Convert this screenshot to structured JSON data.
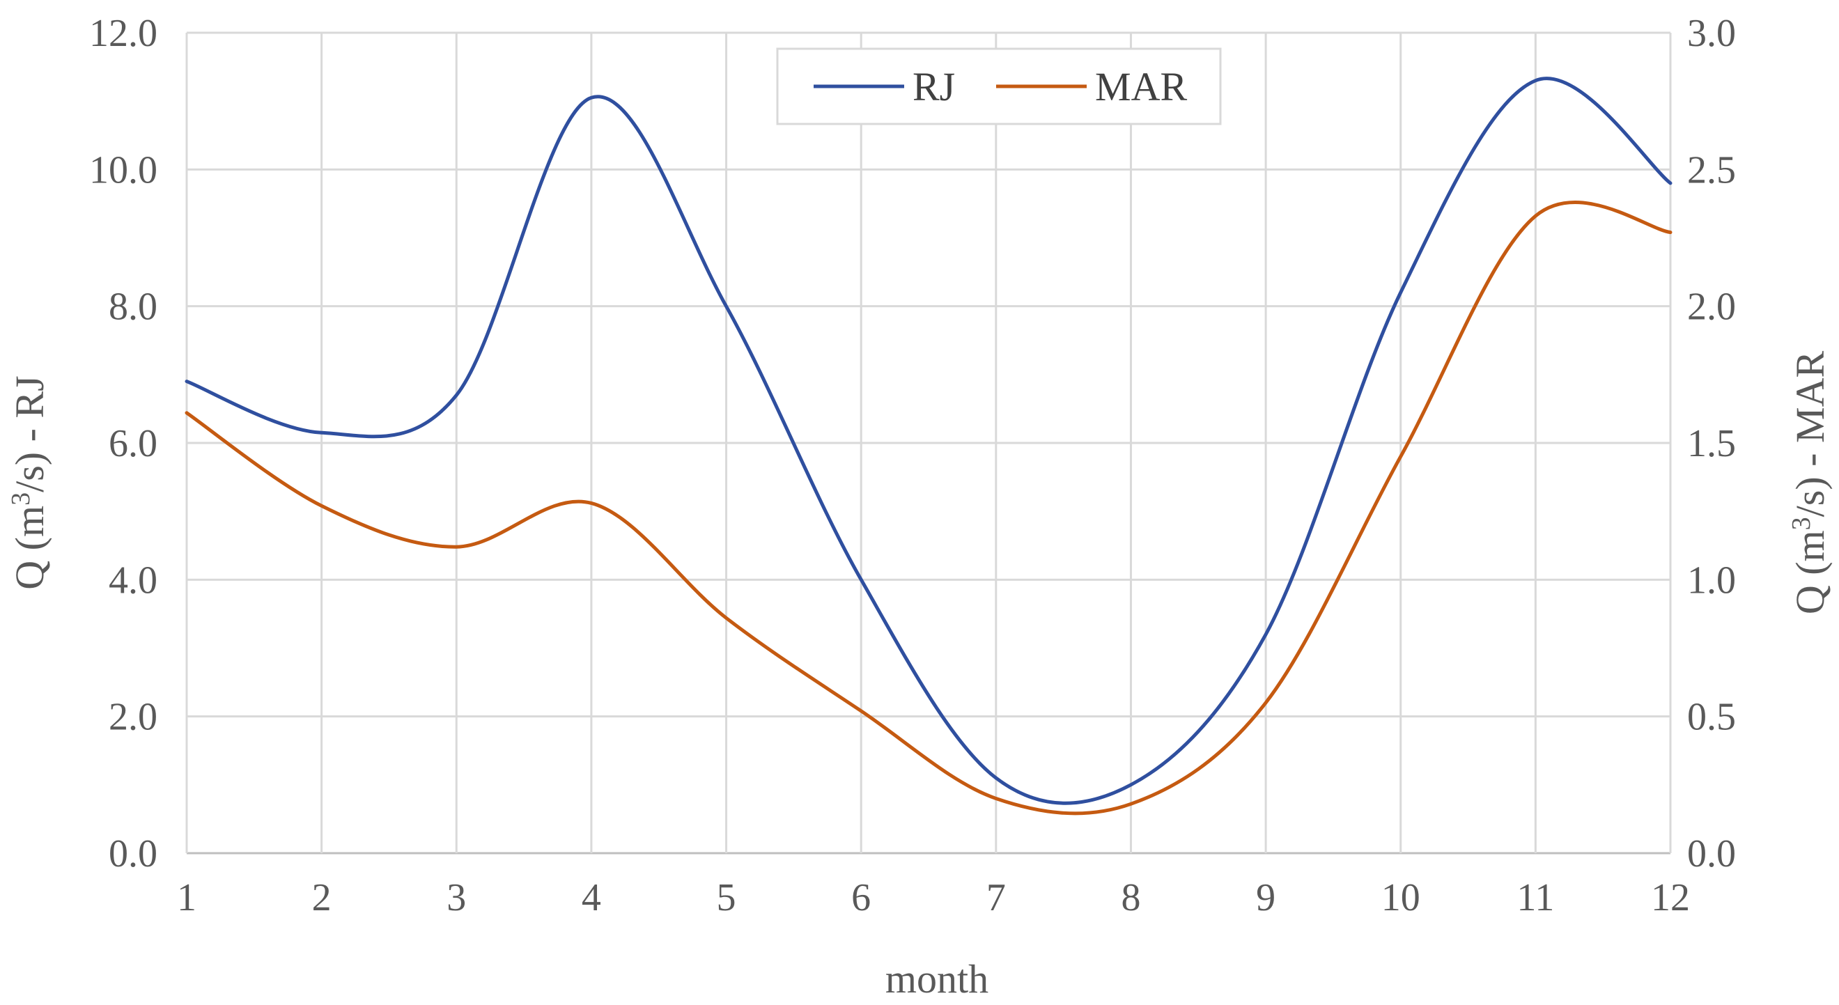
{
  "chart_data": {
    "type": "line",
    "title": "",
    "xlabel": "month",
    "ylabel_left": "Q (m3/s) - RJ",
    "ylabel_left_parts": {
      "pre": "Q (m",
      "sup": "3",
      "post": "/s) - RJ"
    },
    "ylabel_right": "Q (m3/s) - MAR",
    "ylabel_right_parts": {
      "pre": "Q (m",
      "sup": "3",
      "post": "/s) - MAR"
    },
    "x": [
      1,
      2,
      3,
      4,
      5,
      6,
      7,
      8,
      9,
      10,
      11,
      12
    ],
    "x_tick_labels": [
      "1",
      "2",
      "3",
      "4",
      "5",
      "6",
      "7",
      "8",
      "9",
      "10",
      "11",
      "12"
    ],
    "xlim": [
      1,
      12
    ],
    "ylim_left": [
      0,
      12
    ],
    "ylim_right": [
      0,
      3
    ],
    "y_left_ticks": [
      "0.0",
      "2.0",
      "4.0",
      "6.0",
      "8.0",
      "10.0",
      "12.0"
    ],
    "y_right_ticks": [
      "0.0",
      "0.5",
      "1.0",
      "1.5",
      "2.0",
      "2.5",
      "3.0"
    ],
    "grid": true,
    "legend_position": "top-center",
    "series": [
      {
        "name": "RJ",
        "axis": "left",
        "color": "#2f4f9f",
        "values": [
          6.9,
          6.15,
          6.7,
          11.05,
          8.0,
          4.0,
          1.1,
          1.0,
          3.2,
          8.2,
          11.3,
          9.8
        ]
      },
      {
        "name": "MAR",
        "axis": "right",
        "color": "#c55a11",
        "values": [
          1.61,
          1.27,
          1.12,
          1.28,
          0.86,
          0.52,
          0.2,
          0.18,
          0.55,
          1.45,
          2.33,
          2.27
        ]
      }
    ]
  }
}
